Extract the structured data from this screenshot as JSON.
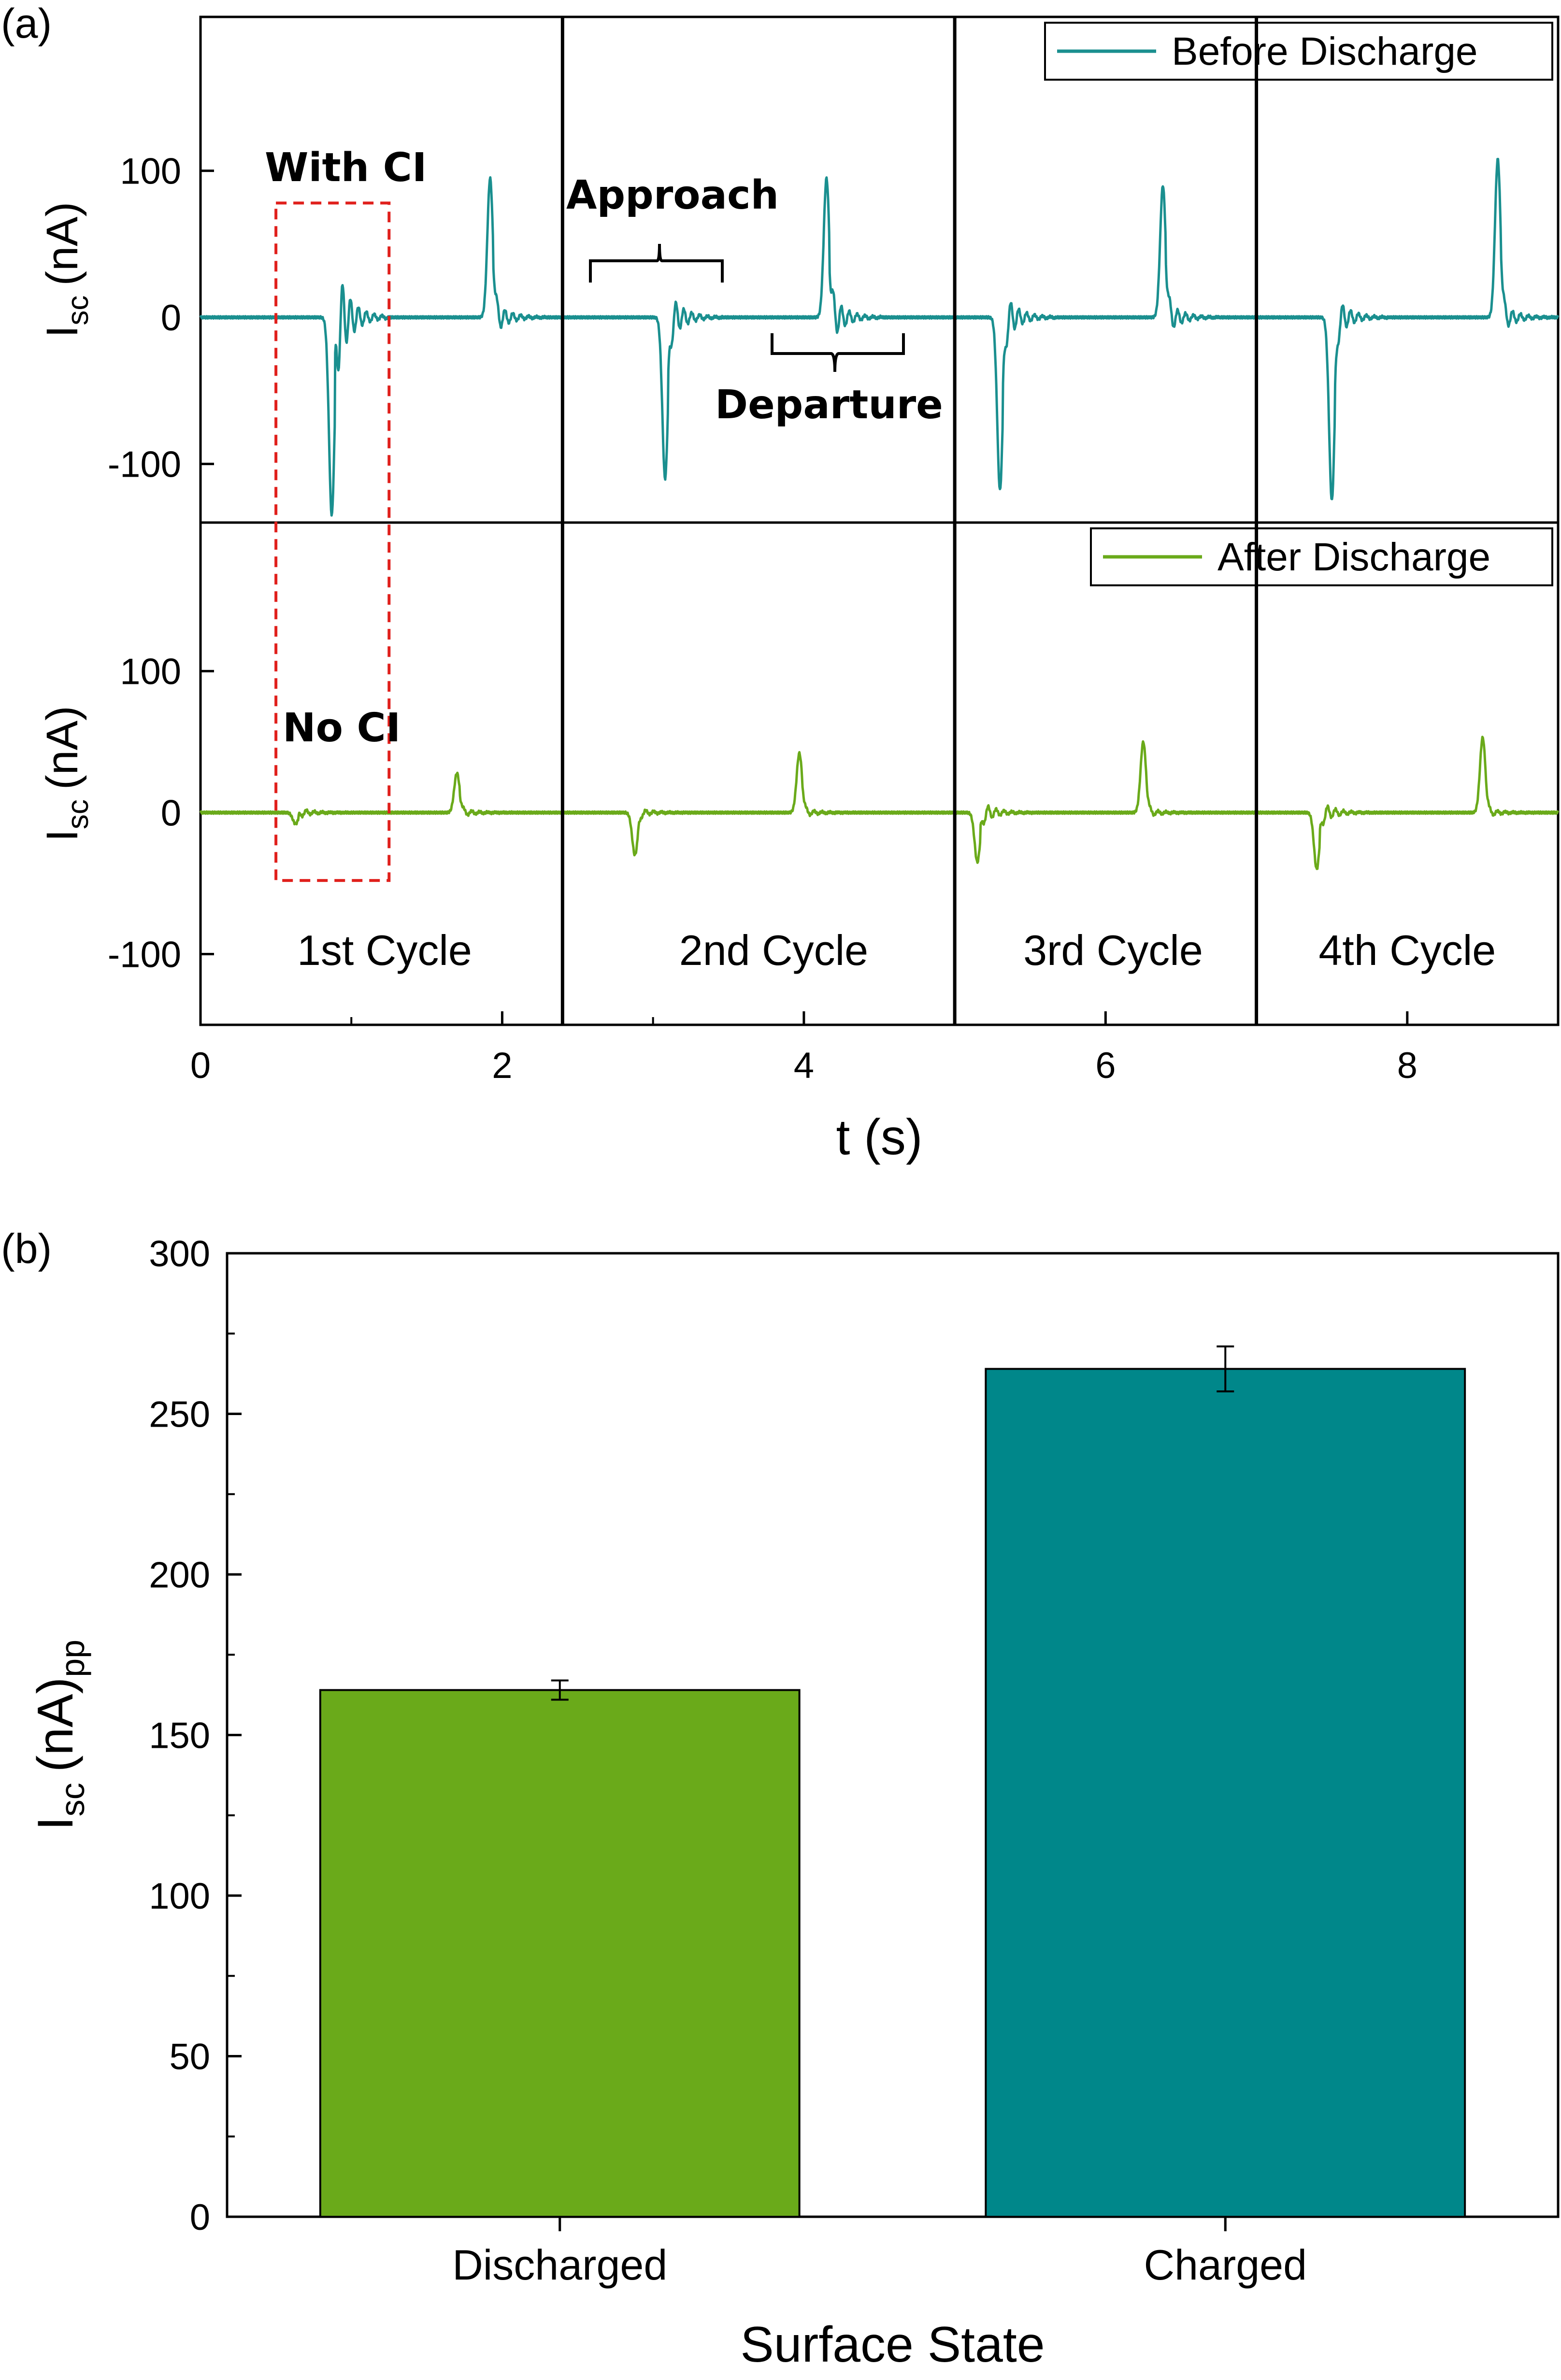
{
  "panel_labels": {
    "a": "(a)",
    "b": "(b)"
  },
  "colors": {
    "before": "#1a8f8f",
    "after": "#6aaa1a",
    "bar_discharged": "#6aaa1a",
    "bar_charged": "#00878a",
    "ci_box": "#e0201c"
  },
  "chart_data": [
    {
      "id": "panel-a",
      "type": "line",
      "xlabel": "t (s)",
      "xlim": [
        0,
        9
      ],
      "x_ticks": [
        0,
        2,
        4,
        6,
        8
      ],
      "cycle_dividers": [
        2.4,
        5.0,
        7.0
      ],
      "cycle_labels": [
        "1st Cycle",
        "2nd Cycle",
        "3rd Cycle",
        "4th Cycle"
      ],
      "grid": false,
      "legend_placement": "top-right",
      "annotations": {
        "with_ci": "With CI",
        "no_ci": "No CI",
        "approach": "Approach",
        "departure": "Departure"
      },
      "ci_box_x": [
        0.5,
        1.25
      ],
      "panels": [
        {
          "name": "Before Discharge",
          "ylabel_main": "I",
          "ylabel_sub": "sc",
          "ylabel_unit": "(nA)",
          "ylim": [
            -140,
            205
          ],
          "y_ticks": [
            -100,
            0,
            100
          ],
          "events": [
            {
              "t": 0.87,
              "peak": -135,
              "rebound": 40
            },
            {
              "t": 1.92,
              "peak": 95,
              "rebound": -12
            },
            {
              "t": 3.08,
              "peak": -110,
              "rebound": 18
            },
            {
              "t": 4.15,
              "peak": 95,
              "rebound": -18
            },
            {
              "t": 5.3,
              "peak": -118,
              "rebound": 18
            },
            {
              "t": 6.38,
              "peak": 90,
              "rebound": -12
            },
            {
              "t": 7.5,
              "peak": -125,
              "rebound": 15
            },
            {
              "t": 8.6,
              "peak": 108,
              "rebound": -10
            }
          ]
        },
        {
          "name": "After Discharge",
          "ylabel_main": "I",
          "ylabel_sub": "sc",
          "ylabel_unit": "(nA)",
          "ylim": [
            -150,
            205
          ],
          "y_ticks": [
            -100,
            0,
            100
          ],
          "events": [
            {
              "t": 0.63,
              "peak": -8,
              "rebound": 3
            },
            {
              "t": 1.7,
              "peak": 28,
              "rebound": -3
            },
            {
              "t": 2.88,
              "peak": -30,
              "rebound": 3
            },
            {
              "t": 3.97,
              "peak": 42,
              "rebound": -3
            },
            {
              "t": 5.15,
              "peak": -35,
              "rebound": 8
            },
            {
              "t": 6.25,
              "peak": 50,
              "rebound": -3
            },
            {
              "t": 7.4,
              "peak": -40,
              "rebound": 8
            },
            {
              "t": 8.5,
              "peak": 53,
              "rebound": -3
            }
          ]
        }
      ]
    },
    {
      "id": "panel-b",
      "type": "bar",
      "categories": [
        "Discharged",
        "Charged"
      ],
      "values": [
        164,
        264
      ],
      "errors": [
        3,
        7
      ],
      "xlabel": "Surface State",
      "ylabel_main": "I",
      "ylabel_sub": "sc",
      "ylabel_unit": "(nA)",
      "ylabel_sub2": "pp",
      "ylim": [
        0,
        300
      ],
      "y_ticks": [
        0,
        50,
        100,
        150,
        200,
        250,
        300
      ],
      "grid": false
    }
  ]
}
